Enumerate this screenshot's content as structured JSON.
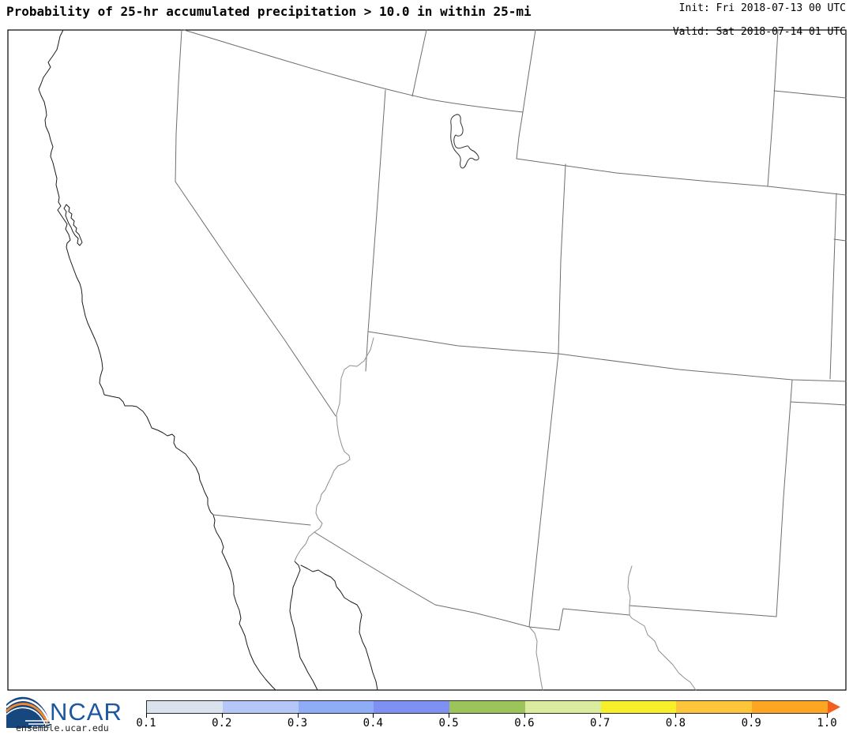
{
  "header": {
    "title": "Probability of 25-hr accumulated precipitation > 10.0 in within 25-mi",
    "init_line": "Init: Fri 2018-07-13 00 UTC",
    "valid_line": "Valid: Sat 2018-07-14 01 UTC"
  },
  "colorbar": {
    "tick_labels": [
      "0.1",
      "0.2",
      "0.3",
      "0.4",
      "0.5",
      "0.6",
      "0.7",
      "0.8",
      "0.9",
      "1.0"
    ],
    "segment_colors": [
      "#dae2ee",
      "#b4c7f8",
      "#8fadf6",
      "#7e91f2",
      "#9cc45a",
      "#dcec9e",
      "#f8ef2b",
      "#fdc53a",
      "#fea621"
    ],
    "arrow_color": "#f45f1d",
    "outline_color": "#2b2b2b"
  },
  "map_colors": {
    "frame": "#000000",
    "coastline": "#1a1a1a",
    "state_border": "#6e6e6e",
    "river": "#8f8f8f",
    "lake_outline": "#333333"
  },
  "footer": {
    "logo_text": "NCAR",
    "site_url": "ensemble.ucar.edu",
    "logo_blue": "#1c57a0",
    "logo_orange": "#f5882f"
  }
}
